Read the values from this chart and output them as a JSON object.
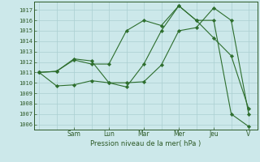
{
  "title": "Pression niveau de la mer( hPa )",
  "ylabel_values": [
    1006,
    1007,
    1008,
    1009,
    1010,
    1011,
    1012,
    1013,
    1014,
    1015,
    1016,
    1017
  ],
  "ylim": [
    1005.5,
    1017.8
  ],
  "xlim": [
    -0.3,
    12.5
  ],
  "day_labels": [
    "Sam",
    "Lun",
    "Mar",
    "Mer",
    "Jeu",
    "V"
  ],
  "day_positions": [
    2,
    4,
    6,
    8,
    10,
    12
  ],
  "background_color": "#cce8ea",
  "grid_color": "#aacfd1",
  "line_color": "#2d6e2d",
  "marker_color": "#2d6e2d",
  "lines": [
    [
      0,
      1011.0,
      1,
      1009.7,
      2,
      1009.8,
      3,
      1010.2,
      4,
      1010.0,
      5,
      1010.0,
      6,
      1010.1,
      7,
      1011.7,
      8,
      1015.0,
      9,
      1015.3,
      10,
      1017.2,
      11,
      1016.0,
      12,
      1007.0
    ],
    [
      0,
      1011.0,
      1,
      1011.1,
      2,
      1012.2,
      3,
      1011.8,
      4,
      1011.8,
      5,
      1015.0,
      6,
      1016.0,
      7,
      1015.5,
      8,
      1017.4,
      9,
      1016.0,
      10,
      1014.3,
      11,
      1012.6,
      12,
      1007.5
    ],
    [
      0,
      1011.0,
      1,
      1011.1,
      2,
      1012.3,
      3,
      1012.1,
      4,
      1010.0,
      5,
      1009.6,
      6,
      1011.8,
      7,
      1015.0,
      8,
      1017.4,
      9,
      1016.0,
      10,
      1016.0,
      11,
      1007.0,
      12,
      1005.8
    ]
  ]
}
